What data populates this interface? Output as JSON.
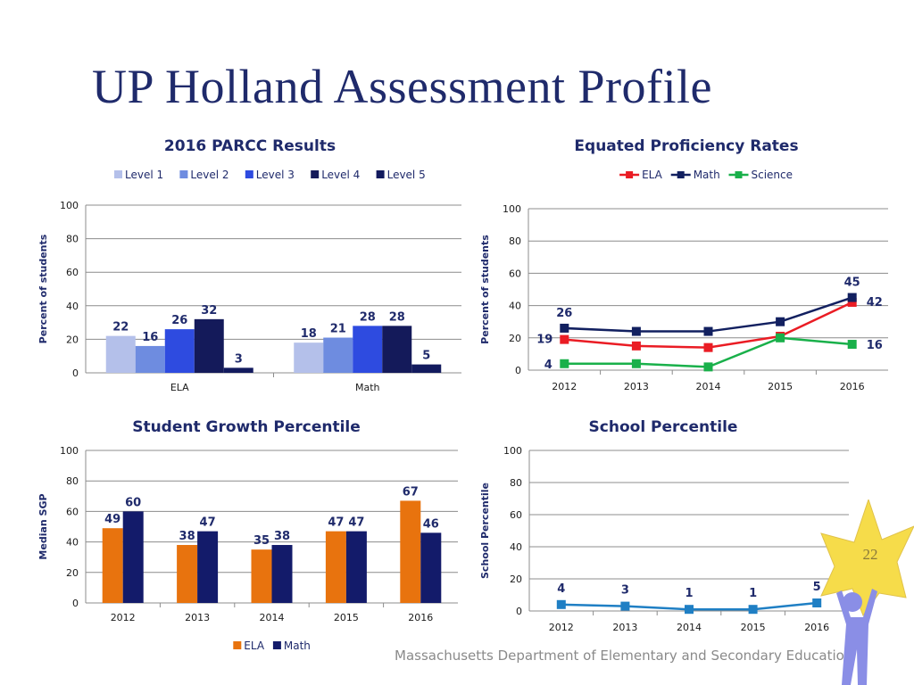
{
  "slide": {
    "title": "UP Holland Assessment Profile",
    "footer": "Massachusetts Department of Elementary and Secondary Education",
    "page_number": "22"
  },
  "colors": {
    "title": "#1f2a6b",
    "level1": "#b4c0ea",
    "level2": "#6e8ce0",
    "level3": "#2e4be0",
    "level4": "#141a5a",
    "level5": "#121a5e",
    "ela_line": "#ea1c24",
    "math_line": "#122060",
    "science_line": "#19b04a",
    "sgp_ela": "#e8730e",
    "sgp_math": "#131b6a",
    "school_line": "#1f7fc4",
    "star": "#f6dc4a",
    "figure": "#8a8ee6"
  },
  "chart_data": [
    {
      "id": "parcc",
      "type": "bar",
      "title": "2016 PARCC Results",
      "ylabel": "Percent of students",
      "xlabel": "",
      "ylim": [
        0,
        100
      ],
      "yticks": [
        0,
        20,
        40,
        60,
        80,
        100
      ],
      "grid": true,
      "legend": "top",
      "categories": [
        "ELA",
        "Math"
      ],
      "series": [
        {
          "name": "Level 1",
          "color": "#b4c0ea",
          "values": [
            22,
            18
          ]
        },
        {
          "name": "Level 2",
          "color": "#6e8ce0",
          "values": [
            16,
            21
          ]
        },
        {
          "name": "Level 3",
          "color": "#2e4be0",
          "values": [
            26,
            28
          ]
        },
        {
          "name": "Level 4",
          "color": "#141a5a",
          "values": [
            32,
            28
          ]
        },
        {
          "name": "Level 5",
          "color": "#121a5e",
          "values": [
            3,
            5
          ]
        }
      ]
    },
    {
      "id": "proficiency",
      "type": "line",
      "title": "Equated Proficiency Rates",
      "ylabel": "Percent of students",
      "xlabel": "",
      "ylim": [
        0,
        100
      ],
      "yticks": [
        0,
        20,
        40,
        60,
        80,
        100
      ],
      "grid": true,
      "legend": "top",
      "x": [
        "2012",
        "2013",
        "2014",
        "2015",
        "2016"
      ],
      "series": [
        {
          "name": "ELA",
          "color": "#ea1c24",
          "values": [
            19,
            15,
            14,
            21,
            42
          ],
          "labels": {
            "0": "19",
            "4": "42"
          }
        },
        {
          "name": "Math",
          "color": "#122060",
          "values": [
            26,
            24,
            24,
            30,
            45
          ],
          "labels": {
            "0": "26",
            "4": "45"
          }
        },
        {
          "name": "Science",
          "color": "#19b04a",
          "values": [
            4,
            4,
            2,
            20,
            16
          ],
          "labels": {
            "0": "4",
            "4": "16"
          }
        }
      ]
    },
    {
      "id": "sgp",
      "type": "bar",
      "title": "Student Growth Percentile",
      "ylabel": "Median SGP",
      "xlabel": "",
      "ylim": [
        0,
        100
      ],
      "yticks": [
        0,
        20,
        40,
        60,
        80,
        100
      ],
      "grid": true,
      "legend": "bottom",
      "categories": [
        "2012",
        "2013",
        "2014",
        "2015",
        "2016"
      ],
      "series": [
        {
          "name": "ELA",
          "color": "#e8730e",
          "values": [
            49,
            38,
            35,
            47,
            67
          ]
        },
        {
          "name": "Math",
          "color": "#131b6a",
          "values": [
            60,
            47,
            38,
            47,
            46
          ]
        }
      ]
    },
    {
      "id": "school_percentile",
      "type": "line",
      "title": "School Percentile",
      "ylabel": "School Percentile",
      "xlabel": "",
      "ylim": [
        0,
        100
      ],
      "yticks": [
        0,
        20,
        40,
        60,
        80,
        100
      ],
      "grid": true,
      "legend": "none",
      "x": [
        "2012",
        "2013",
        "2014",
        "2015",
        "2016"
      ],
      "series": [
        {
          "name": "",
          "color": "#1f7fc4",
          "values": [
            4,
            3,
            1,
            1,
            5
          ],
          "labels": {
            "0": "4",
            "1": "3",
            "2": "1",
            "3": "1",
            "4": "5"
          }
        }
      ]
    }
  ]
}
